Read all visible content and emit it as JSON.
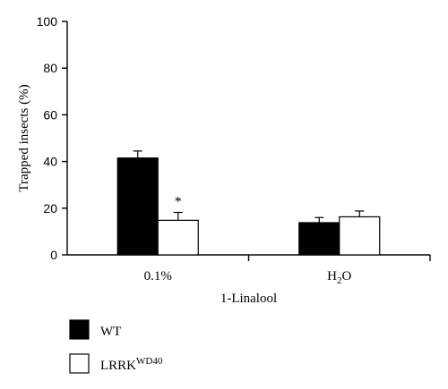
{
  "chart_data": {
    "type": "bar",
    "ylabel": "Trapped insects (%)",
    "xlabel": "1-Linalool",
    "ylim": [
      0,
      100
    ],
    "yticks": [
      0,
      20,
      40,
      60,
      80,
      100
    ],
    "categories": [
      {
        "main": "0.1%",
        "sub": ""
      },
      {
        "main": "H",
        "sub": "2",
        "tail": "O"
      }
    ],
    "series": [
      {
        "name": "WT",
        "name_sup": "",
        "color": "#000000",
        "values": [
          41.5,
          13.8
        ],
        "errors": [
          3.0,
          2.2
        ]
      },
      {
        "name": "LRRK",
        "name_sup": "WD40",
        "color": "#ffffff",
        "values": [
          14.8,
          16.3
        ],
        "errors": [
          3.4,
          2.5
        ]
      }
    ],
    "annotations": [
      {
        "text": "*",
        "category_index": 0,
        "series_index": 1
      }
    ],
    "grid": false,
    "legend_position": "bottom-left"
  }
}
